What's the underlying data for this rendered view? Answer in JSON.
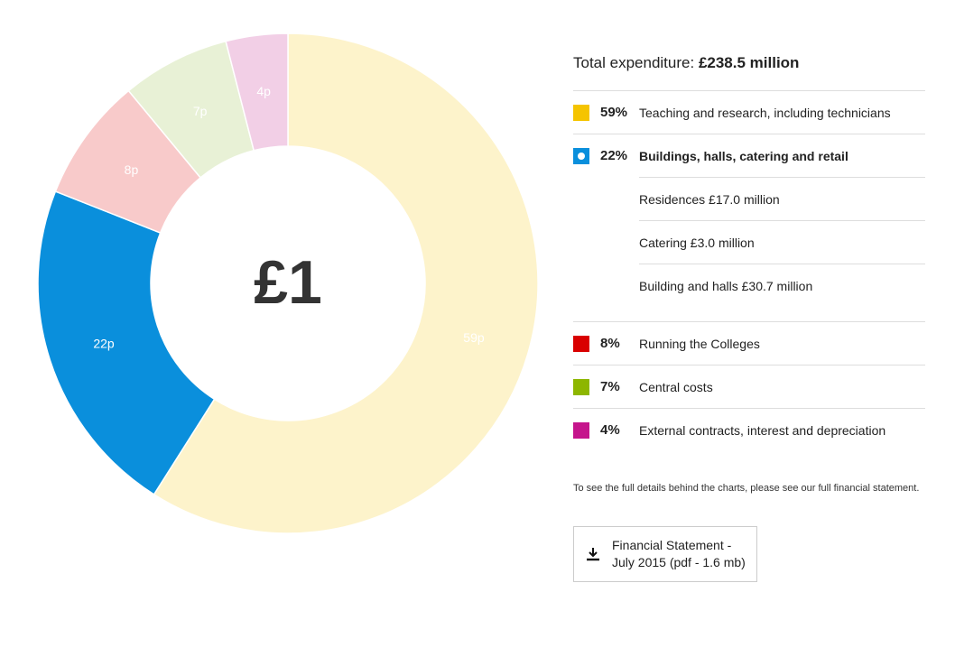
{
  "chart_data": {
    "type": "pie",
    "subtype": "donut",
    "center_label": "£1",
    "slices": [
      {
        "label": "59p",
        "value": 59,
        "color": "#fdf3cb"
      },
      {
        "label": "22p",
        "value": 22,
        "color": "#0a8fdc"
      },
      {
        "label": "8p",
        "value": 8,
        "color": "#f8caca"
      },
      {
        "label": "7p",
        "value": 7,
        "color": "#e8f1d6"
      },
      {
        "label": "4p",
        "value": 4,
        "color": "#f2cfe6"
      }
    ]
  },
  "legend": {
    "total_label": "Total expenditure:",
    "total_value": "£238.5 million",
    "items": [
      {
        "pct": "59%",
        "label": "Teaching and research, including technicians",
        "color": "#f5c400"
      },
      {
        "pct": "22%",
        "label": "Buildings, halls, catering and retail",
        "color": "#0a8fdc",
        "sub": [
          "Residences £17.0 million",
          "Catering £3.0 million",
          "Building and halls £30.7 million"
        ]
      },
      {
        "pct": "8%",
        "label": "Running the Colleges",
        "color": "#d90000"
      },
      {
        "pct": "7%",
        "label": "Central costs",
        "color": "#8db600"
      },
      {
        "pct": "4%",
        "label": "External contracts, interest and depreciation",
        "color": "#c5158c"
      }
    ]
  },
  "note": "To see the full details behind the charts, please see our full financial statement.",
  "download": {
    "line1": "Financial Statement -",
    "line2": "July 2015 (pdf - 1.6 mb)"
  }
}
